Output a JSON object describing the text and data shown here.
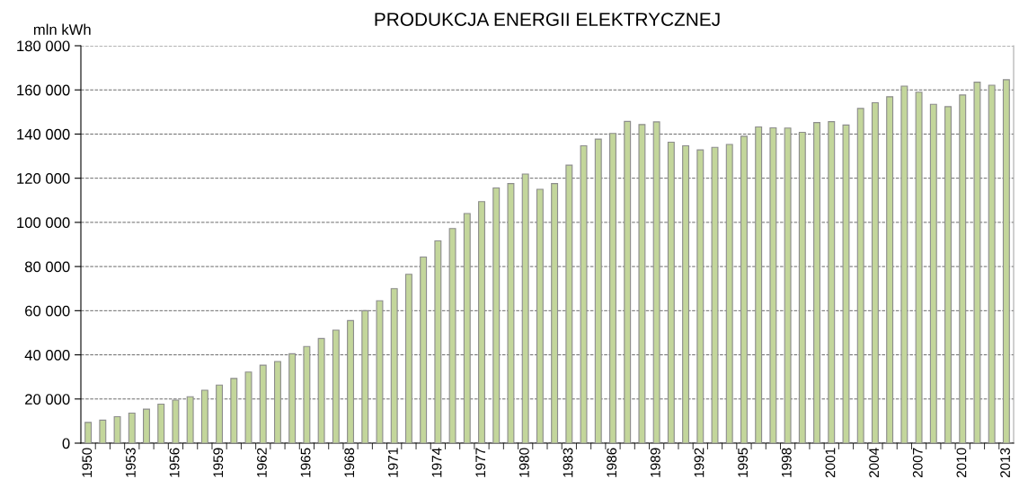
{
  "chart_data": {
    "type": "bar",
    "title": "PRODUKCJA ENERGII ELEKTRYCZNEJ",
    "ylabel": "mln kWh",
    "categories": [
      "1950",
      null,
      null,
      "1953",
      null,
      null,
      "1956",
      null,
      null,
      "1959",
      null,
      null,
      "1962",
      null,
      null,
      "1965",
      null,
      null,
      "1968",
      null,
      null,
      "1971",
      null,
      null,
      "1974",
      null,
      null,
      "1977",
      null,
      null,
      "1980",
      null,
      null,
      "1983",
      null,
      null,
      "1986",
      null,
      null,
      "1989",
      null,
      null,
      "1992",
      null,
      null,
      "1995",
      null,
      null,
      "1998",
      null,
      null,
      "2001",
      null,
      null,
      "2004",
      null,
      null,
      "2007",
      null,
      null,
      "2010",
      null,
      null,
      "2013"
    ],
    "values": [
      9400,
      10400,
      12000,
      13600,
      15400,
      17700,
      19500,
      21000,
      24000,
      26300,
      29300,
      32200,
      35300,
      37000,
      40500,
      43800,
      47400,
      51200,
      55500,
      60000,
      64500,
      70000,
      76500,
      84300,
      91600,
      97200,
      104000,
      109400,
      115600,
      117600,
      121900,
      115000,
      117600,
      125900,
      134700,
      137700,
      140300,
      145700,
      144300,
      145500,
      136300,
      134700,
      132800,
      134000,
      135300,
      139000,
      143200,
      142800,
      142700,
      140800,
      145200,
      145600,
      144100,
      151600,
      154200,
      156900,
      161700,
      159000,
      153500,
      152400,
      157700,
      163500,
      162100,
      164600
    ],
    "color": "#c3d69b",
    "ylim": [
      0,
      180000
    ],
    "yticks": [
      0,
      {
        "value": 20000,
        "label": "20 000"
      },
      {
        "value": 40000,
        "label": "40 000"
      },
      {
        "value": 60000,
        "label": "60 000"
      },
      {
        "value": 80000,
        "label": "80 000"
      },
      {
        "value": 100000,
        "label": "100 000"
      },
      {
        "value": 120000,
        "label": "120 000"
      },
      {
        "value": 140000,
        "label": "140 000"
      },
      {
        "value": 160000,
        "label": "160 000"
      },
      {
        "value": 180000,
        "label": "180 000"
      }
    ],
    "grid": "y",
    "line_style": "dashed",
    "legend": false
  }
}
